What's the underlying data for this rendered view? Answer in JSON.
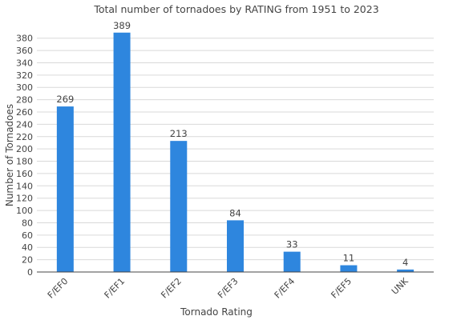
{
  "chart_data": {
    "type": "bar",
    "title": "Total number of tornadoes by RATING from 1951 to 2023",
    "xlabel": "Tornado Rating",
    "ylabel": "Number of Tornadoes",
    "categories": [
      "F/EF0",
      "F/EF1",
      "F/EF2",
      "F/EF3",
      "F/EF4",
      "F/EF5",
      "UNK"
    ],
    "values": [
      269,
      389,
      213,
      84,
      33,
      11,
      4
    ],
    "ylim": [
      0,
      390
    ],
    "yticks": [
      0,
      20,
      40,
      60,
      80,
      100,
      120,
      140,
      160,
      180,
      200,
      220,
      240,
      260,
      280,
      300,
      320,
      340,
      360,
      380
    ],
    "grid": true,
    "bar_color": "#2e86de"
  }
}
